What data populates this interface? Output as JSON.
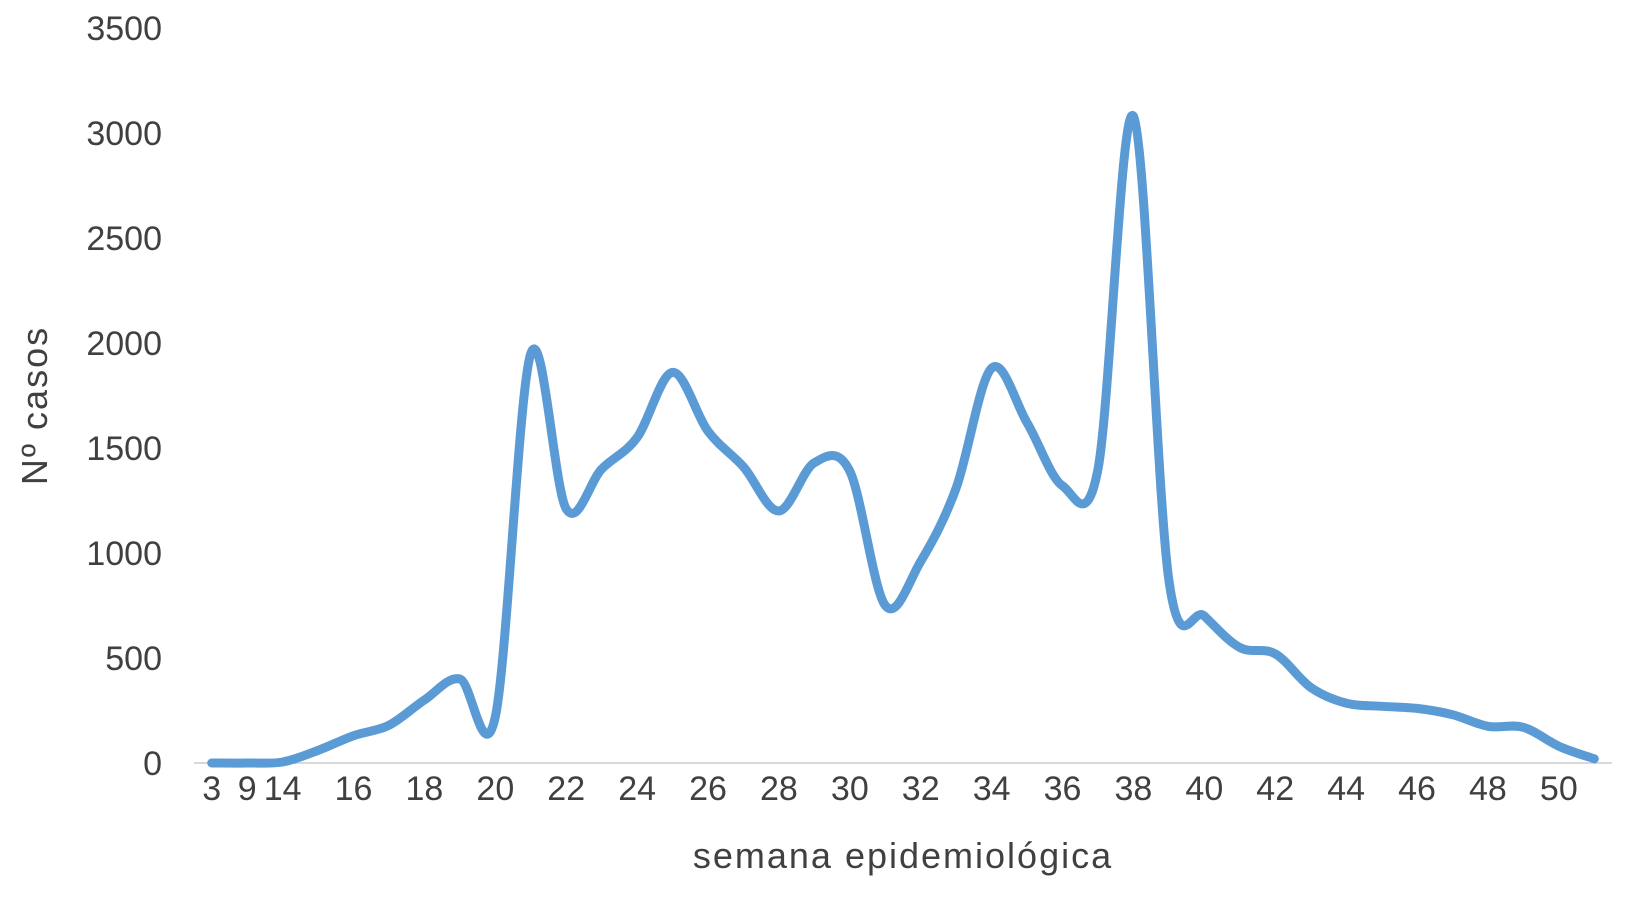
{
  "chart_data": {
    "type": "line",
    "xlabel": "semana epidemiológica",
    "ylabel": "Nº casos",
    "ylim": [
      0,
      3500
    ],
    "yticks": [
      0,
      500,
      1000,
      1500,
      2000,
      2500,
      3000,
      3500
    ],
    "grid": false,
    "smooth": true,
    "categories": [
      "3",
      "9",
      "14",
      "15",
      "16",
      "17",
      "18",
      "19",
      "20",
      "21",
      "22",
      "23",
      "24",
      "25",
      "26",
      "27",
      "28",
      "29",
      "30",
      "31",
      "32",
      "33",
      "34",
      "35",
      "36",
      "37",
      "38",
      "39",
      "40",
      "41",
      "42",
      "43",
      "44",
      "45",
      "46",
      "47",
      "48",
      "49",
      "50",
      "51"
    ],
    "x_tick_labels_shown": [
      "3",
      "9",
      "14",
      "16",
      "18",
      "20",
      "22",
      "24",
      "26",
      "28",
      "30",
      "32",
      "34",
      "36",
      "38",
      "40",
      "42",
      "44",
      "46",
      "48",
      "50"
    ],
    "series": [
      {
        "values": [
          0,
          0,
          5,
          60,
          130,
          180,
          300,
          400,
          220,
          1950,
          1210,
          1400,
          1550,
          1860,
          1580,
          1410,
          1200,
          1430,
          1390,
          750,
          960,
          1310,
          1880,
          1620,
          1320,
          1400,
          3080,
          870,
          700,
          550,
          520,
          360,
          285,
          270,
          260,
          230,
          175,
          170,
          80,
          20
        ],
        "color": "#5b9bd5"
      }
    ]
  }
}
